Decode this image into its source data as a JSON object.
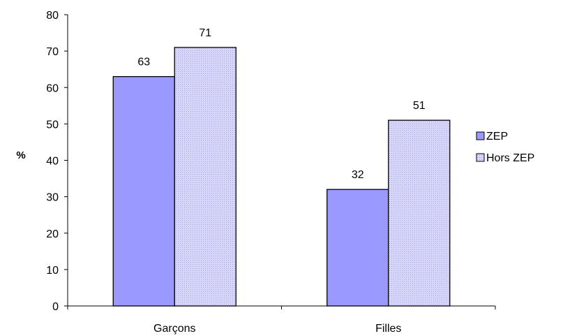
{
  "chart_data": {
    "type": "bar",
    "title": "",
    "xlabel": "",
    "ylabel": "%",
    "categories": [
      "Garçons",
      "Filles"
    ],
    "series": [
      {
        "name": "ZEP",
        "values": [
          63,
          32
        ],
        "color": "#9999ff",
        "pattern": "solid"
      },
      {
        "name": "Hors ZEP",
        "values": [
          71,
          51
        ],
        "color": "#ccccff",
        "pattern": "dotted"
      }
    ],
    "ylim": [
      0,
      80
    ],
    "yticks": [
      0,
      10,
      20,
      30,
      40,
      50,
      60,
      70,
      80
    ],
    "grid": false,
    "legend": "right",
    "data_labels": true
  }
}
